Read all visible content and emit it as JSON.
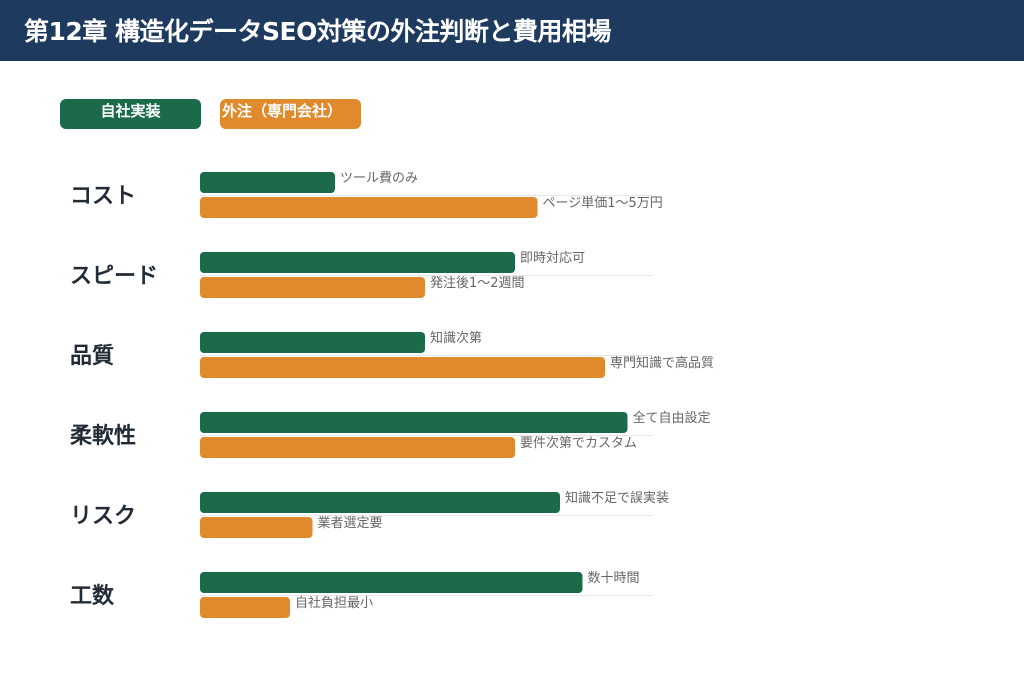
{
  "title": "第12章 構造化データSEO対策の外注判断と費用相場",
  "colors": {
    "header": "#1e3a5f",
    "inhouse": "#1b6b4a",
    "outsource": "#e08a2e",
    "category": "#222b36",
    "label": "#666666",
    "grid": "#e6e6e6"
  },
  "chart_data": {
    "type": "bar",
    "orientation": "horizontal",
    "categories": [
      "コスト",
      "スピード",
      "品質",
      "柔軟性",
      "リスク",
      "工数"
    ],
    "xlim": [
      0,
      10
    ],
    "grid": false,
    "legend_position": "top-left",
    "series": [
      {
        "name": "自社実装",
        "color": "#1b6b4a",
        "values": [
          3,
          7,
          5,
          9.5,
          8,
          8.5
        ],
        "labels": [
          "ツール費のみ",
          "即時対応可",
          "知識次第",
          "全て自由設定",
          "知識不足で誤実装",
          "数十時間"
        ]
      },
      {
        "name": "外注（専門会社）",
        "color": "#e08a2e",
        "values": [
          7.5,
          5,
          9,
          7,
          2.5,
          2
        ],
        "labels": [
          "ページ単価1〜5万円",
          "発注後1〜2週間",
          "専門知識で高品質",
          "要件次第でカスタム",
          "業者選定要",
          "自社負担最小"
        ]
      }
    ]
  }
}
